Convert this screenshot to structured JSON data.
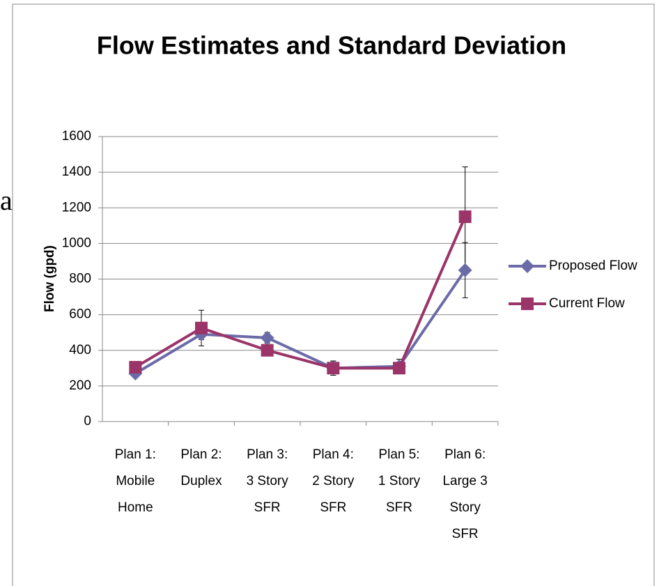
{
  "side_text": "a",
  "chart_data": {
    "type": "line",
    "title": "Flow Estimates and Standard Deviation",
    "y_label": "Flow (gpd)",
    "categories": [
      "Plan 1:\nMobile\nHome",
      "Plan 2:\nDuplex",
      "Plan 3:\n3 Story\nSFR",
      "Plan 4:\n2 Story\nSFR",
      "Plan 5:\n1 Story\nSFR",
      "Plan 6:\nLarge 3\nStory\nSFR"
    ],
    "series": [
      {
        "name": "Proposed Flow",
        "color": "#6b6ba8",
        "marker": "diamond",
        "values": [
          270,
          490,
          470,
          300,
          310,
          850
        ],
        "errors": [
          20,
          30,
          30,
          40,
          40,
          155
        ]
      },
      {
        "name": "Current Flow",
        "color": "#9b3468",
        "marker": "square",
        "values": [
          305,
          525,
          400,
          300,
          300,
          1150
        ],
        "errors": [
          20,
          100,
          20,
          40,
          20,
          280
        ]
      }
    ],
    "ylim": [
      0,
      1600
    ],
    "yticks": [
      0,
      200,
      400,
      600,
      800,
      1000,
      1200,
      1400,
      1600
    ],
    "grid": true,
    "legend": "right"
  }
}
